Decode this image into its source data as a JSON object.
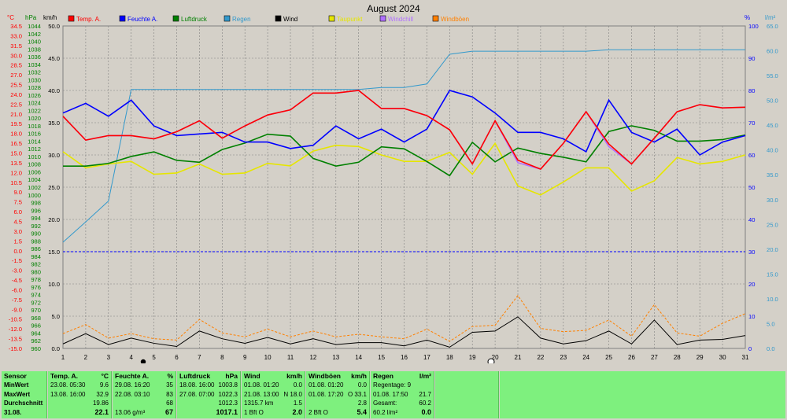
{
  "chart_data": {
    "type": "line",
    "title": "August 2024",
    "x": [
      1,
      2,
      3,
      4,
      5,
      6,
      7,
      8,
      9,
      10,
      11,
      12,
      13,
      14,
      15,
      16,
      17,
      18,
      19,
      20,
      21,
      22,
      23,
      24,
      25,
      26,
      27,
      28,
      29,
      30,
      31
    ],
    "axes": {
      "temp": {
        "unit": "°C",
        "min": -15,
        "max": 35,
        "ticks": [
          "34.5",
          "33.0",
          "31.5",
          "30.0",
          "28.5",
          "27.0",
          "25.5",
          "24.0",
          "22.5",
          "21.0",
          "19.5",
          "18.0",
          "16.5",
          "15.0",
          "13.5",
          "12.0",
          "10.5",
          "9.0",
          "7.5",
          "6.0",
          "4.5",
          "3.0",
          "1.5",
          "0.0",
          "-1.5",
          "-3.0",
          "-4.5",
          "-6.0",
          "-7.5",
          "-9.0",
          "-10.5",
          "-12.0",
          "-13.5",
          "-15.0"
        ]
      },
      "pressure": {
        "unit": "hPa",
        "min": 960,
        "max": 1044,
        "ticks": [
          "1044",
          "1042",
          "1040",
          "1038",
          "1036",
          "1034",
          "1032",
          "1030",
          "1028",
          "1026",
          "1024",
          "1022",
          "1020",
          "1018",
          "1016",
          "1014",
          "1012",
          "1010",
          "1008",
          "1006",
          "1004",
          "1002",
          "1000",
          "998",
          "996",
          "994",
          "992",
          "990",
          "988",
          "986",
          "984",
          "982",
          "980",
          "978",
          "976",
          "974",
          "972",
          "970",
          "968",
          "966",
          "964",
          "962",
          "960"
        ]
      },
      "wind": {
        "unit": "km/h",
        "min": 0,
        "max": 50,
        "ticks": [
          "50.0",
          "45.0",
          "40.0",
          "35.0",
          "30.0",
          "25.0",
          "20.0",
          "15.0",
          "10.0",
          "5.0",
          "0.0"
        ]
      },
      "humidity": {
        "unit": "%",
        "min": 0,
        "max": 100,
        "ticks": [
          "100",
          "90",
          "80",
          "70",
          "60",
          "50",
          "40",
          "30",
          "20",
          "10",
          "0"
        ]
      },
      "rain": {
        "unit": "l/m²",
        "min": 0,
        "max": 65,
        "ticks": [
          "65.0",
          "60.0",
          "55.0",
          "50.0",
          "45.0",
          "40.0",
          "35.0",
          "30.0",
          "25.0",
          "20.0",
          "15.0",
          "10.0",
          "5.0",
          "0.0"
        ]
      }
    },
    "legend": [
      {
        "name": "Temp. A.",
        "color": "#ff0000"
      },
      {
        "name": "Feuchte A.",
        "color": "#0000ff"
      },
      {
        "name": "Luftdruck",
        "color": "#008000"
      },
      {
        "name": "Regen",
        "color": "#3399cc"
      },
      {
        "name": "Wind",
        "color": "#000000"
      },
      {
        "name": "Taupunkt",
        "color": "#e6e600"
      },
      {
        "name": "Windchill",
        "color": "#b070ff"
      },
      {
        "name": "Windböen",
        "color": "#ff8000"
      }
    ],
    "series": [
      {
        "name": "Temp. A.",
        "axis": "temp",
        "color": "#ff0000",
        "values": [
          21.0,
          17.3,
          18.0,
          18.0,
          17.5,
          18.6,
          20.3,
          17.6,
          19.5,
          21.2,
          22.0,
          24.6,
          24.6,
          25.0,
          22.2,
          22.2,
          21.1,
          18.9,
          13.6,
          20.3,
          14.2,
          12.8,
          16.8,
          21.7,
          16.7,
          13.6,
          17.6,
          21.7,
          22.8,
          22.3,
          22.4
        ]
      },
      {
        "name": "Feuchte A.",
        "axis": "humidity",
        "color": "#0000ff",
        "values": [
          73,
          76,
          72,
          77,
          69,
          66,
          66.5,
          67,
          64,
          64,
          62,
          63,
          69,
          65,
          68,
          64,
          68,
          80,
          78,
          73,
          67,
          67,
          65,
          61,
          77,
          67,
          64,
          68,
          60,
          64,
          66
        ]
      },
      {
        "name": "Luftdruck",
        "axis": "pressure",
        "color": "#008000",
        "values": [
          1007.5,
          1007.5,
          1008.2,
          1010,
          1011.2,
          1009,
          1008.5,
          1011.8,
          1013.5,
          1015.8,
          1015.3,
          1009.5,
          1007.5,
          1008.5,
          1012.5,
          1012,
          1008.7,
          1005,
          1013.7,
          1008.6,
          1012.2,
          1010.8,
          1009.8,
          1008.6,
          1016.5,
          1018,
          1016.8,
          1014,
          1014,
          1014.4,
          1015.6
        ]
      },
      {
        "name": "Regen",
        "axis": "rain",
        "color": "#3399cc",
        "values": [
          21.4,
          25.5,
          29.7,
          52.2,
          52.2,
          52.2,
          52.2,
          52.2,
          52.2,
          52.2,
          52.2,
          52.2,
          52.2,
          52.2,
          52.6,
          52.6,
          53.3,
          59.3,
          59.9,
          59.9,
          59.9,
          59.9,
          59.9,
          59.9,
          60.2,
          60.2,
          60.2,
          60.2,
          60.2,
          60.2,
          60.2
        ]
      },
      {
        "name": "Taupunkt",
        "axis": "temp",
        "color": "#e6e600",
        "values": [
          15.5,
          13.0,
          13.6,
          14.0,
          12.0,
          12.2,
          13.6,
          12.0,
          12.2,
          13.7,
          13.3,
          15.6,
          16.5,
          16.3,
          15.0,
          14.0,
          14.0,
          15.4,
          12.0,
          16.8,
          10.2,
          8.8,
          10.8,
          13.0,
          13.0,
          9.4,
          11.0,
          14.6,
          13.6,
          14.0,
          15.0
        ]
      },
      {
        "name": "Windchill",
        "axis": "temp",
        "color": "#b070ff",
        "values": [
          21.0,
          17.3,
          18.0,
          18.0,
          17.5,
          18.6,
          20.3,
          17.6,
          19.5,
          21.2,
          22.0,
          24.6,
          24.6,
          25.0,
          22.2,
          22.2,
          21.1,
          18.9,
          13.6,
          20.3,
          13.8,
          12.8,
          16.8,
          21.7,
          16.3,
          13.6,
          17.6,
          21.7,
          22.8,
          22.3,
          22.4
        ]
      },
      {
        "name": "Wind",
        "axis": "wind",
        "color": "#000000",
        "values": [
          0.7,
          2.3,
          0.6,
          1.6,
          0.8,
          0.3,
          2.7,
          1.5,
          0.8,
          1.7,
          0.7,
          1.5,
          0.6,
          0.9,
          0.9,
          0.4,
          1.3,
          0.2,
          2.5,
          2.7,
          4.9,
          1.6,
          0.7,
          1.2,
          2.7,
          0.7,
          4.4,
          0.6,
          1.3,
          1.4,
          2.0
        ]
      },
      {
        "name": "Windböen",
        "axis": "wind",
        "color": "#ff8000",
        "dashed": true,
        "values": [
          2.3,
          3.7,
          1.6,
          2.3,
          1.5,
          1.3,
          4.5,
          2.4,
          1.8,
          3.0,
          1.8,
          2.7,
          1.8,
          2.2,
          1.8,
          1.5,
          3.0,
          1.1,
          3.4,
          3.6,
          8.2,
          3.1,
          2.6,
          2.8,
          4.4,
          1.9,
          6.8,
          2.4,
          1.9,
          3.9,
          5.4
        ]
      }
    ],
    "reference_line": {
      "axis": "wind",
      "value": 15.0,
      "color": "#0000ff"
    }
  },
  "stats": {
    "sensor": {
      "title": "Sensor",
      "min": "MinWert",
      "max": "MaxWert",
      "avg": "Durchschnitt",
      "date": "31.08."
    },
    "temp": {
      "title": "Temp. A.",
      "unit": "°C",
      "min_time": "23.08.  05:30",
      "min": "9.6",
      "max_time": "13.08.  16:00",
      "max": "32.9",
      "avg": "19.86",
      "cur": "22.1"
    },
    "hum": {
      "title": "Feuchte A.",
      "unit": "%",
      "min_time": "29.08.  16:20",
      "min": "35",
      "max_time": "22.08.  03:10",
      "max": "83",
      "avg": "68",
      "extra": "13.06 g/m³",
      "cur": "67"
    },
    "press": {
      "title": "Luftdruck",
      "unit": "hPa",
      "min_time": "18.08.  16:00",
      "min": "1003.8",
      "max_time": "27.08.  07:00",
      "max": "1022.3",
      "avg": "1012.3",
      "cur": "1017.1"
    },
    "wind": {
      "title": "Wind",
      "unit": "km/h",
      "min_time": "01.08.  01:20",
      "min": "0.0",
      "max_time": "21.08.  13:00",
      "max": "N 18.0",
      "avg_l": "1315.7 km",
      "avg": "1.5",
      "extra": "1 Bft O",
      "cur": "2.0"
    },
    "gust": {
      "title": "Windböen",
      "unit": "km/h",
      "min_time": "01.08.  01:20",
      "min": "0.0",
      "max_time": "01.08.  17:20",
      "max": "O 33.1",
      "avg": "2.8",
      "extra": "2 Bft O",
      "cur": "5.4"
    },
    "rain": {
      "title": "Regen",
      "unit": "l/m²",
      "r1": "Regentage: 9",
      "r2_l": "01.08.  17:50",
      "r2": "21.7",
      "r3_l": "Gesamt:",
      "r3": "60.2",
      "r4": "60.2 l/m²",
      "cur": "0.0"
    }
  },
  "markers": {
    "full_moon": "full-moon-symbol",
    "new_moon": "new-moon-symbol"
  }
}
